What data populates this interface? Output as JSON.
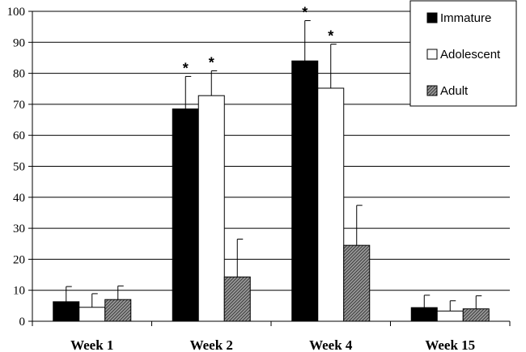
{
  "chart_data": {
    "type": "bar",
    "categories": [
      "Week 1",
      "Week 2",
      "Week 4",
      "Week 15"
    ],
    "series": [
      {
        "name": "Immature",
        "color": "#000000",
        "pattern": "solid",
        "values": [
          6.3,
          68.5,
          84.0,
          4.4
        ],
        "error": [
          4.9,
          10.5,
          13.0,
          4.0
        ],
        "significant": [
          false,
          true,
          true,
          false
        ]
      },
      {
        "name": "Adolescent",
        "color": "#ffffff",
        "pattern": "solid",
        "values": [
          4.5,
          72.8,
          75.2,
          3.3
        ],
        "error": [
          4.4,
          8.0,
          14.2,
          3.3
        ],
        "significant": [
          false,
          true,
          true,
          false
        ]
      },
      {
        "name": "Adult",
        "color": "#808080",
        "pattern": "diagonal-hatch",
        "values": [
          7.0,
          14.3,
          24.5,
          4.0
        ],
        "error": [
          4.4,
          12.2,
          12.9,
          4.2
        ],
        "significant": [
          false,
          false,
          false,
          false
        ]
      }
    ],
    "significance_marker": "*",
    "ylim": [
      0,
      100
    ],
    "yticks": [
      "0",
      "10",
      "20",
      "30",
      "40",
      "50",
      "60",
      "70",
      "80",
      "90",
      "100"
    ],
    "grid": true,
    "legend_position": "top-right",
    "title": "",
    "xlabel": "",
    "ylabel": ""
  }
}
